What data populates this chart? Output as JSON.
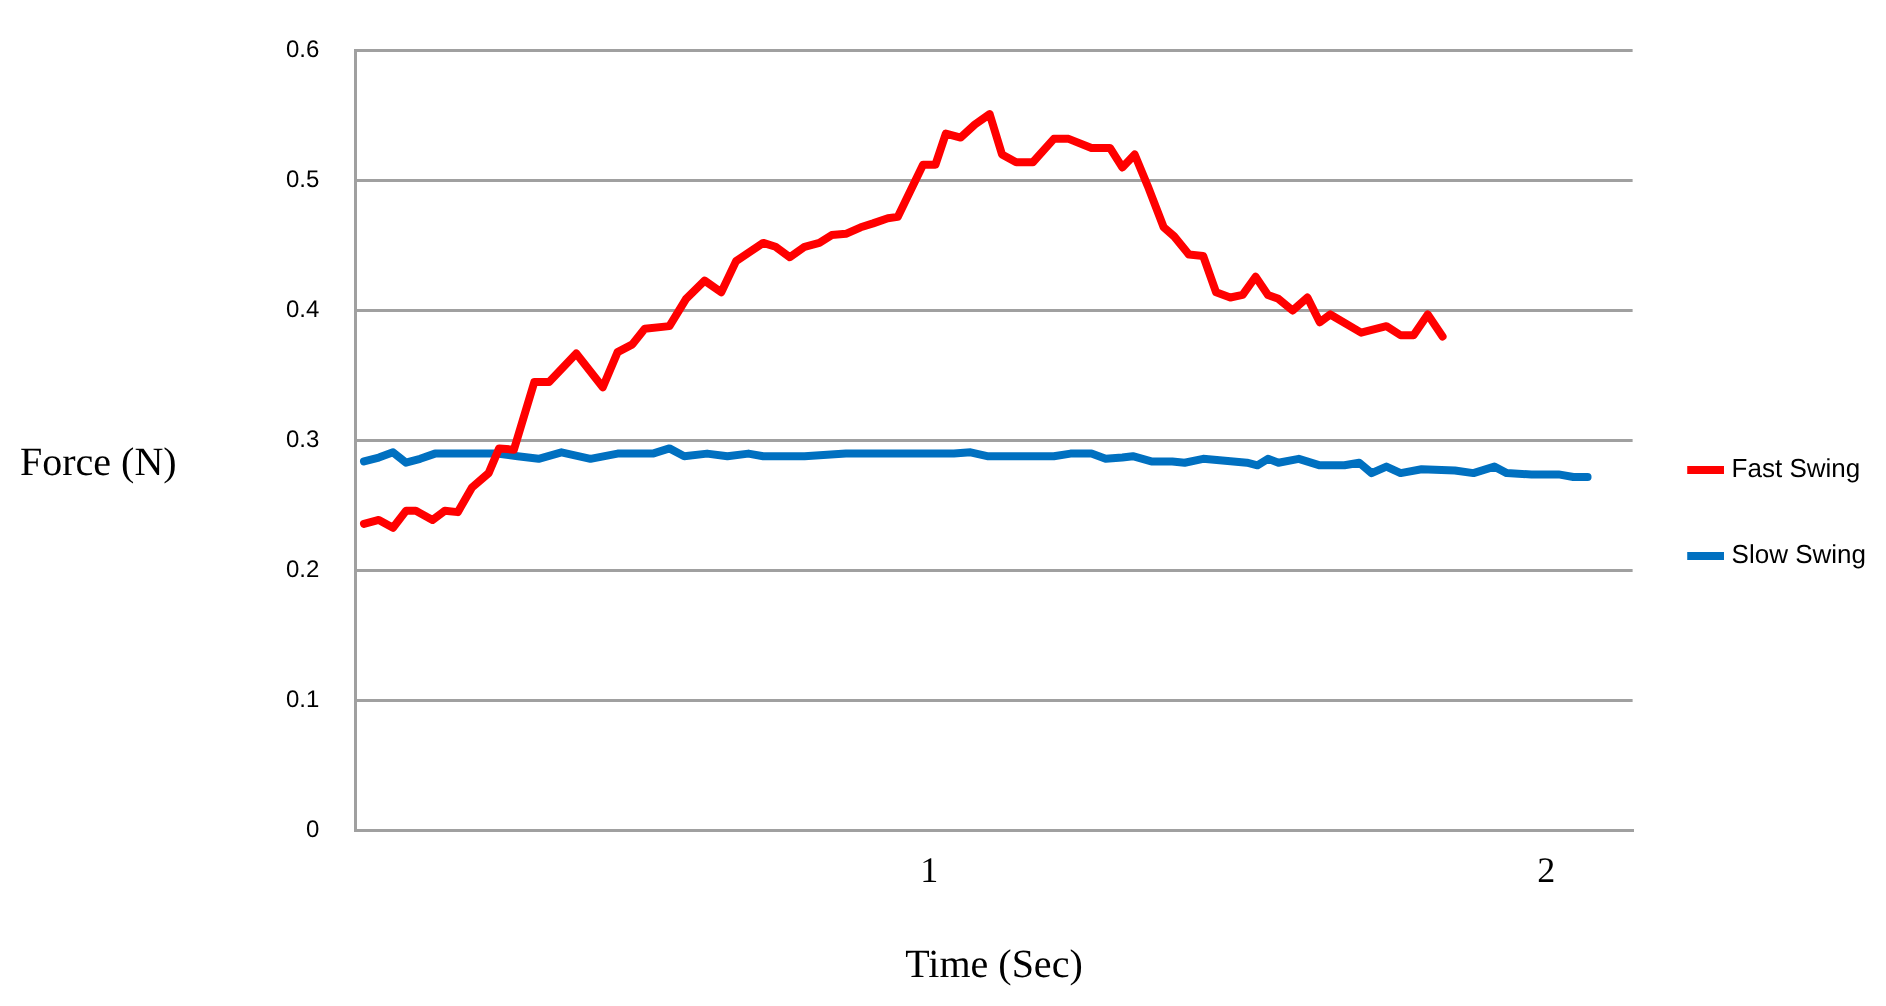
{
  "chart_data": {
    "type": "line",
    "xlabel": "Time (Sec)",
    "ylabel": "Force (N)",
    "xlim": [
      0.07,
      2.14
    ],
    "xticks": [
      1,
      2
    ],
    "ylim": [
      0,
      0.6
    ],
    "yticks": [
      0,
      0.1,
      0.2,
      0.3,
      0.4,
      0.5,
      0.6
    ],
    "grid": "y",
    "legend": "right",
    "marker": "none",
    "line_style": "solid",
    "series": [
      {
        "name": "Fast Swing",
        "color": "#ff0000",
        "x": [
          0.084,
          0.108,
          0.131,
          0.152,
          0.168,
          0.195,
          0.215,
          0.236,
          0.259,
          0.286,
          0.303,
          0.327,
          0.36,
          0.384,
          0.428,
          0.471,
          0.495,
          0.519,
          0.539,
          0.579,
          0.606,
          0.636,
          0.663,
          0.687,
          0.731,
          0.751,
          0.774,
          0.798,
          0.822,
          0.842,
          0.865,
          0.889,
          0.909,
          0.933,
          0.949,
          0.99,
          1.01,
          1.027,
          1.051,
          1.074,
          1.098,
          1.118,
          1.141,
          1.168,
          1.202,
          1.226,
          1.263,
          1.293,
          1.313,
          1.333,
          1.354,
          1.38,
          1.397,
          1.421,
          1.444,
          1.465,
          1.488,
          1.508,
          1.529,
          1.549,
          1.566,
          1.589,
          1.613,
          1.633,
          1.65,
          1.7,
          1.741,
          1.764,
          1.785,
          1.808,
          1.832
        ],
        "values": [
          0.236,
          0.239,
          0.233,
          0.246,
          0.246,
          0.239,
          0.246,
          0.245,
          0.264,
          0.275,
          0.294,
          0.293,
          0.345,
          0.345,
          0.367,
          0.341,
          0.368,
          0.374,
          0.386,
          0.388,
          0.409,
          0.423,
          0.414,
          0.438,
          0.452,
          0.449,
          0.441,
          0.449,
          0.452,
          0.458,
          0.459,
          0.464,
          0.467,
          0.471,
          0.472,
          0.512,
          0.512,
          0.536,
          0.533,
          0.543,
          0.551,
          0.52,
          0.514,
          0.514,
          0.532,
          0.532,
          0.525,
          0.525,
          0.51,
          0.52,
          0.496,
          0.464,
          0.457,
          0.443,
          0.442,
          0.414,
          0.41,
          0.412,
          0.426,
          0.412,
          0.409,
          0.4,
          0.41,
          0.391,
          0.397,
          0.383,
          0.388,
          0.381,
          0.381,
          0.397,
          0.38
        ]
      },
      {
        "name": "Slow Swing",
        "color": "#0070c0",
        "x": [
          0.084,
          0.108,
          0.131,
          0.152,
          0.175,
          0.199,
          0.3,
          0.333,
          0.367,
          0.404,
          0.451,
          0.495,
          0.552,
          0.579,
          0.603,
          0.64,
          0.673,
          0.707,
          0.731,
          0.798,
          0.865,
          1.04,
          1.067,
          1.094,
          1.202,
          1.229,
          1.263,
          1.286,
          1.313,
          1.33,
          1.36,
          1.394,
          1.414,
          1.444,
          1.515,
          1.532,
          1.549,
          1.566,
          1.599,
          1.633,
          1.673,
          1.697,
          1.717,
          1.741,
          1.764,
          1.798,
          1.852,
          1.882,
          1.916,
          1.936,
          1.976,
          2.02,
          2.044,
          2.067
        ],
        "values": [
          0.284,
          0.287,
          0.291,
          0.283,
          0.286,
          0.29,
          0.29,
          0.288,
          0.286,
          0.291,
          0.286,
          0.29,
          0.29,
          0.294,
          0.288,
          0.29,
          0.288,
          0.29,
          0.288,
          0.288,
          0.29,
          0.29,
          0.291,
          0.288,
          0.288,
          0.29,
          0.29,
          0.286,
          0.287,
          0.288,
          0.284,
          0.284,
          0.283,
          0.286,
          0.283,
          0.281,
          0.286,
          0.283,
          0.286,
          0.281,
          0.281,
          0.283,
          0.275,
          0.28,
          0.275,
          0.278,
          0.277,
          0.275,
          0.28,
          0.275,
          0.274,
          0.274,
          0.272,
          0.272
        ]
      }
    ]
  }
}
